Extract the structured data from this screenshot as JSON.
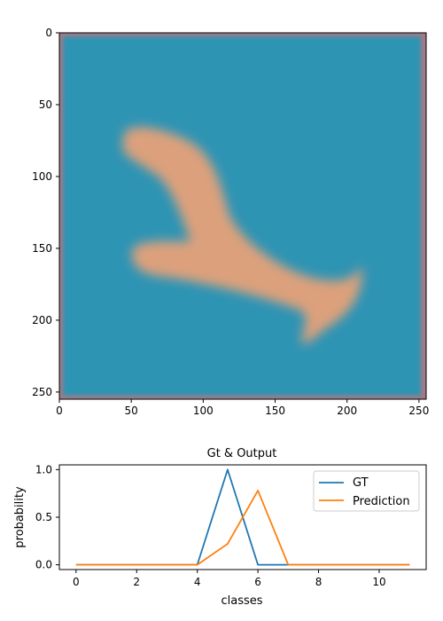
{
  "chart_data": [
    {
      "type": "image",
      "xlim": [
        0,
        255
      ],
      "ylim": [
        255,
        0
      ],
      "xticks": [
        "0",
        "50",
        "100",
        "150",
        "200",
        "250"
      ],
      "yticks": [
        "0",
        "50",
        "100",
        "150",
        "200",
        "250"
      ],
      "xtick_values": [
        0,
        50,
        100,
        150,
        200,
        250
      ],
      "ytick_values": [
        0,
        50,
        100,
        150,
        200,
        250
      ],
      "colors": {
        "background": "#2f94b4",
        "border": "#a57a86",
        "shape": "#dca07c"
      }
    },
    {
      "type": "line",
      "title": "Gt & Output",
      "xlabel": "classes",
      "ylabel": "probability",
      "xlim": [
        -0.55,
        11.55
      ],
      "ylim": [
        -0.05,
        1.05
      ],
      "xticks": [
        "0",
        "2",
        "4",
        "6",
        "8",
        "10"
      ],
      "xtick_values": [
        0,
        2,
        4,
        6,
        8,
        10
      ],
      "yticks": [
        "0.0",
        "0.5",
        "1.0"
      ],
      "ytick_values": [
        0,
        0.5,
        1.0
      ],
      "x": [
        0,
        1,
        2,
        3,
        4,
        5,
        6,
        7,
        8,
        9,
        10,
        11
      ],
      "series": [
        {
          "name": "GT",
          "color": "#1f77b4",
          "values": [
            0,
            0,
            0,
            0,
            0,
            1.0,
            0,
            0,
            0,
            0,
            0,
            0
          ]
        },
        {
          "name": "Prediction",
          "color": "#ff7f0e",
          "values": [
            0,
            0,
            0,
            0,
            0,
            0.22,
            0.78,
            0,
            0,
            0,
            0,
            0
          ]
        }
      ],
      "legend": "top-right"
    }
  ]
}
